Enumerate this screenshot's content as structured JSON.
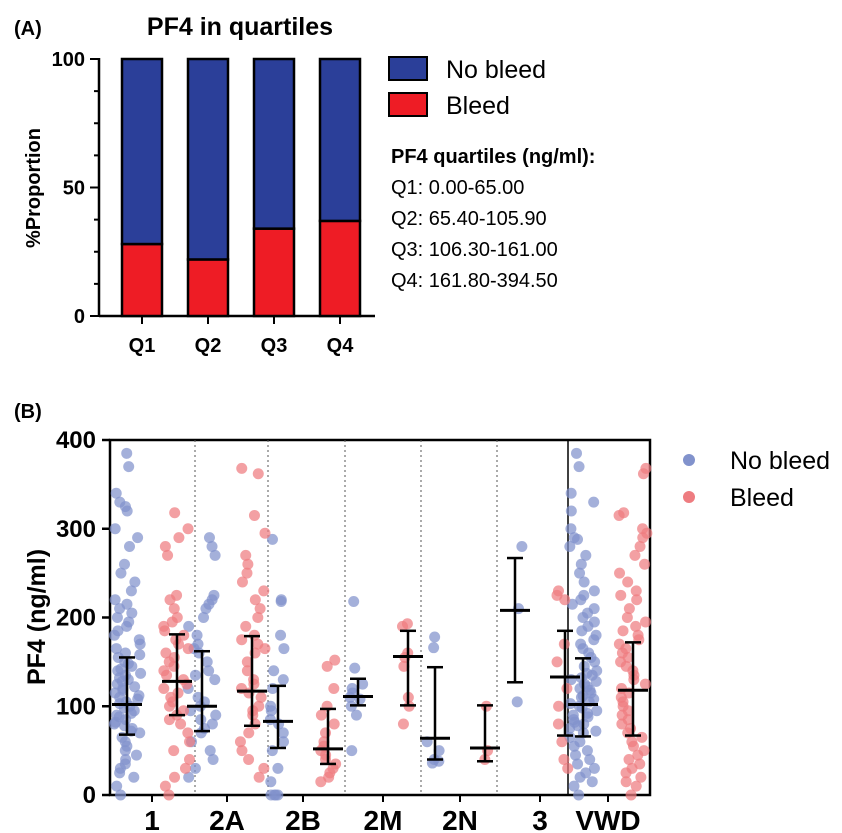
{
  "panel_a": {
    "tag": "(A)"
  },
  "panel_b": {
    "tag": "(B)"
  },
  "colors": {
    "no_bleed_bar": "#2B3F99",
    "bleed_bar": "#EE1C25",
    "no_bleed_dot": "#8192CC",
    "bleed_dot": "#EE7C80"
  },
  "chart_data": [
    {
      "type": "bar",
      "stacked": true,
      "title": "PF4 in quartiles",
      "xlabel": "",
      "ylabel": "%Proportion",
      "ylim": [
        0,
        100
      ],
      "yticks": [
        "0",
        "50",
        "100"
      ],
      "categories": [
        "Q1",
        "Q2",
        "Q3",
        "Q4"
      ],
      "series": [
        {
          "name": "Bleed",
          "values": [
            28,
            22,
            34,
            37
          ],
          "color": "#EE1C25"
        },
        {
          "name": "No bleed",
          "values": [
            72,
            78,
            66,
            63
          ],
          "color": "#2B3F99"
        }
      ],
      "legend_position": "right",
      "note": {
        "title": "PF4 quartiles (ng/ml):",
        "lines": [
          "Q1: 0.00-65.00",
          "Q2: 65.40-105.90",
          "Q3: 106.30-161.00",
          "Q4: 161.80-394.50"
        ]
      }
    },
    {
      "type": "scatter",
      "xlabel": "",
      "ylabel": "PF4 (ng/ml)",
      "ylim": [
        0,
        400
      ],
      "yticks": [
        "0",
        "100",
        "200",
        "300",
        "400"
      ],
      "categories": [
        "1",
        "2A",
        "2B",
        "2M",
        "2N",
        "3",
        "VWD"
      ],
      "legend_position": "top-right",
      "series": [
        {
          "name": "No bleed",
          "color": "#8192CC",
          "median": [
            102,
            100,
            83,
            111,
            64,
            208,
            102
          ],
          "q1": [
            68,
            72,
            53,
            101,
            40,
            127,
            66
          ],
          "q3": [
            155,
            162,
            123,
            131,
            144,
            267,
            154
          ],
          "points": [
            [
              385,
              370,
              340,
              330,
              325,
              320,
              300,
              290,
              280,
              260,
              250,
              240,
              230,
              220,
              215,
              210,
              205,
              200,
              195,
              190,
              185,
              180,
              175,
              170,
              165,
              160,
              158,
              155,
              150,
              148,
              145,
              142,
              140,
              137,
              135,
              132,
              130,
              128,
              125,
              122,
              120,
              118,
              115,
              112,
              110,
              108,
              105,
              103,
              100,
              98,
              95,
              92,
              90,
              88,
              85,
              82,
              80,
              78,
              75,
              72,
              70,
              65,
              60,
              55,
              50,
              45,
              40,
              35,
              30,
              25,
              20,
              10,
              0
            ],
            [
              290,
              280,
              270,
              225,
              220,
              215,
              210,
              200,
              190,
              180,
              170,
              165,
              160,
              150,
              140,
              135,
              130,
              120,
              110,
              105,
              100,
              95,
              90,
              85,
              80,
              75,
              70,
              60,
              50,
              40,
              30,
              20
            ],
            [
              288,
              220,
              218,
              180,
              165,
              140,
              130,
              120,
              100,
              95,
              85,
              80,
              70,
              60,
              50,
              30,
              15,
              0,
              0,
              0,
              0
            ],
            [
              218,
              143,
              125,
              120,
              115,
              110,
              108,
              100,
              90,
              50
            ],
            [
              178,
              166,
              60,
              50,
              40,
              38,
              36
            ],
            [
              280,
              210,
              105
            ],
            [
              385,
              370,
              340,
              330,
              320,
              300,
              290,
              288,
              280,
              270,
              260,
              250,
              240,
              230,
              225,
              220,
              215,
              210,
              205,
              200,
              195,
              190,
              185,
              180,
              175,
              170,
              165,
              160,
              155,
              150,
              145,
              140,
              137,
              135,
              132,
              130,
              128,
              125,
              122,
              120,
              118,
              115,
              112,
              110,
              108,
              105,
              103,
              100,
              98,
              95,
              92,
              90,
              88,
              85,
              82,
              80,
              78,
              75,
              72,
              70,
              65,
              60,
              55,
              50,
              45,
              40,
              35,
              30,
              25,
              20,
              15,
              10,
              0
            ]
          ]
        },
        {
          "name": "Bleed",
          "color": "#EE7C80",
          "median": [
            128,
            117,
            52,
            156,
            53,
            133,
            118
          ],
          "q1": [
            90,
            78,
            35,
            101,
            38,
            67,
            67
          ],
          "q3": [
            181,
            179,
            97,
            185,
            101,
            185,
            172
          ],
          "points": [
            [
              318,
              300,
              290,
              280,
              270,
              225,
              220,
              210,
              200,
              195,
              190,
              185,
              180,
              175,
              170,
              165,
              160,
              155,
              150,
              145,
              140,
              135,
              130,
              125,
              120,
              115,
              110,
              105,
              100,
              95,
              90,
              85,
              80,
              70,
              60,
              50,
              40,
              30,
              20,
              10,
              0
            ],
            [
              368,
              362,
              315,
              295,
              270,
              260,
              250,
              240,
              230,
              220,
              210,
              200,
              190,
              180,
              175,
              170,
              165,
              160,
              150,
              140,
              130,
              125,
              120,
              115,
              110,
              100,
              95,
              90,
              80,
              70,
              60,
              50,
              40,
              30,
              20
            ],
            [
              152,
              145,
              120,
              100,
              90,
              80,
              70,
              60,
              55,
              50,
              45,
              40,
              35,
              30,
              25,
              20,
              15
            ],
            [
              193,
              190,
              160,
              155,
              145,
              110,
              100,
              80
            ],
            [
              100,
              50,
              40
            ],
            [
              230,
              225,
              220,
              170,
              150,
              120,
              100,
              80,
              60,
              40,
              30
            ],
            [
              368,
              362,
              318,
              315,
              300,
              295,
              290,
              280,
              270,
              260,
              250,
              240,
              230,
              225,
              220,
              210,
              200,
              195,
              190,
              185,
              180,
              175,
              170,
              165,
              160,
              155,
              150,
              145,
              140,
              135,
              130,
              125,
              120,
              115,
              110,
              105,
              100,
              95,
              90,
              85,
              80,
              75,
              70,
              65,
              60,
              55,
              50,
              45,
              40,
              35,
              30,
              25,
              20,
              15,
              10,
              0
            ]
          ]
        }
      ]
    }
  ]
}
